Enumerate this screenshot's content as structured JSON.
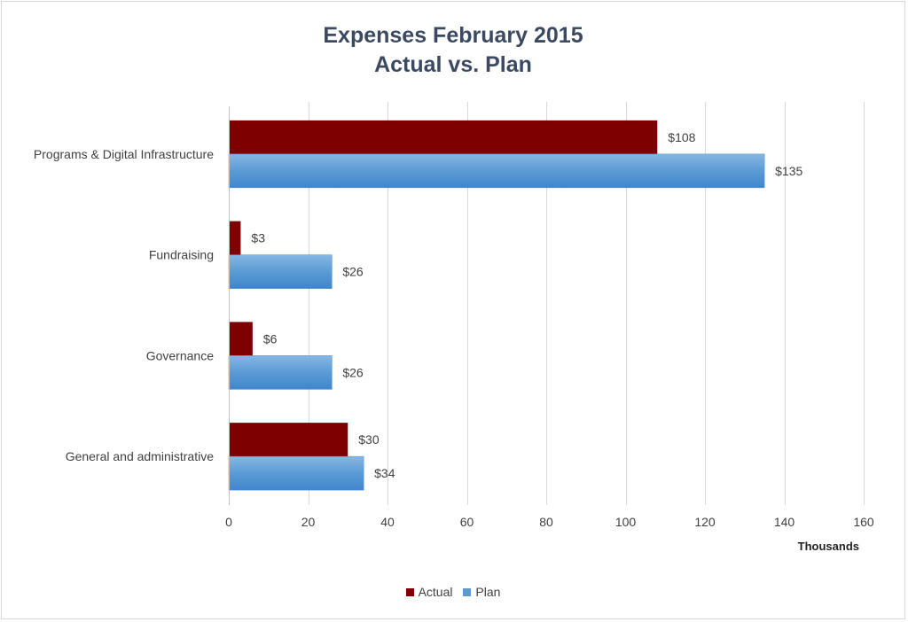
{
  "chart_data": {
    "type": "bar",
    "orientation": "horizontal",
    "title": "Expenses February 2015",
    "subtitle": "Actual vs. Plan",
    "xlabel": "Thousands",
    "ylabel": "",
    "xlim": [
      0,
      160
    ],
    "xticks": [
      0,
      20,
      40,
      60,
      80,
      100,
      120,
      140,
      160
    ],
    "grid": "vertical",
    "legend_position": "bottom",
    "categories": [
      "Programs & Digital Infrastructure",
      "Fundraising",
      "Governance",
      "General and administrative"
    ],
    "series": [
      {
        "name": "Actual",
        "color": "#7f0000",
        "values": [
          108,
          3,
          6,
          30
        ],
        "labels": [
          "$108",
          "$3",
          "$6",
          "$30"
        ]
      },
      {
        "name": "Plan",
        "color": "#5b9bd5",
        "values": [
          135,
          26,
          26,
          34
        ],
        "labels": [
          "$135",
          "$26",
          "$26",
          "$34"
        ]
      }
    ]
  }
}
